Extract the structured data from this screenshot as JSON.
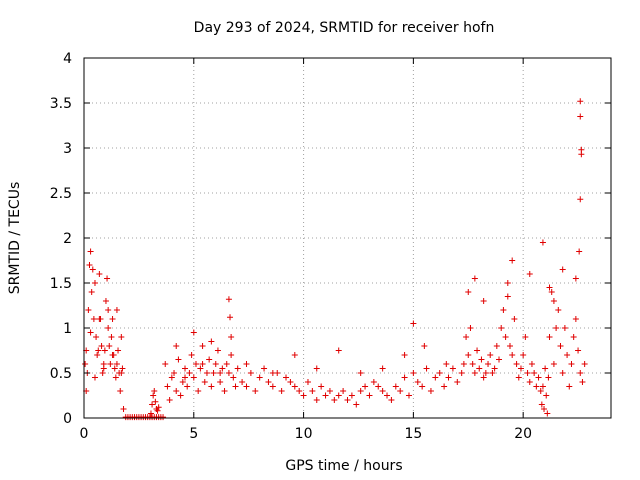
{
  "chart_data": {
    "type": "scatter",
    "title": "Day 293 of 2024, SRMTID for receiver hofn",
    "xlabel": "GPS time / hours",
    "ylabel": "SRMTID / TECUs",
    "xlim": [
      0,
      24
    ],
    "ylim": [
      0,
      4
    ],
    "xticks": [
      0,
      5,
      10,
      15,
      20
    ],
    "xtick_labels": [
      "0",
      "5",
      "10",
      "15",
      "20"
    ],
    "yticks": [
      0,
      0.5,
      1,
      1.5,
      2,
      2.5,
      3,
      3.5,
      4
    ],
    "ytick_labels": [
      "0",
      "0.5",
      "1",
      "1.5",
      "2",
      "2.5",
      "3",
      "3.5",
      "4"
    ],
    "grid": true,
    "marker": "plus",
    "color": "#e00000",
    "series": [
      {
        "name": "SRMTID",
        "x": [
          0.05,
          0.1,
          0.15,
          0.2,
          0.25,
          0.3,
          0.35,
          0.4,
          0.45,
          0.5,
          0.55,
          0.6,
          0.65,
          0.7,
          0.75,
          0.8,
          0.85,
          0.9,
          0.95,
          1.0,
          1.05,
          1.1,
          1.15,
          1.2,
          1.25,
          1.3,
          1.35,
          1.4,
          1.45,
          1.5,
          1.55,
          1.6,
          1.65,
          1.7,
          1.75,
          1.8,
          1.9,
          2.0,
          2.1,
          2.2,
          2.3,
          2.4,
          2.5,
          2.6,
          2.7,
          2.8,
          2.9,
          3.0,
          3.1,
          3.2,
          3.3,
          3.4,
          3.5,
          3.6,
          3.05,
          3.1,
          3.15,
          3.2,
          3.25,
          3.3,
          3.35,
          3.4,
          3.7,
          3.8,
          3.9,
          4.0,
          4.1,
          4.2,
          4.3,
          4.4,
          4.5,
          4.6,
          4.7,
          4.8,
          4.9,
          5.0,
          5.1,
          5.2,
          5.3,
          5.4,
          5.5,
          5.6,
          5.7,
          5.8,
          5.9,
          6.0,
          6.1,
          6.2,
          6.3,
          6.4,
          6.5,
          6.6,
          6.7,
          6.8,
          6.9,
          7.0,
          7.2,
          7.4,
          7.6,
          7.8,
          8.0,
          8.2,
          8.4,
          8.6,
          8.8,
          9.0,
          9.2,
          9.4,
          9.6,
          9.8,
          10.0,
          10.2,
          10.4,
          10.6,
          10.8,
          11.0,
          11.2,
          11.4,
          11.6,
          11.8,
          12.0,
          12.2,
          12.4,
          12.6,
          12.8,
          13.0,
          13.2,
          13.4,
          13.6,
          13.8,
          14.0,
          14.2,
          14.4,
          14.6,
          14.8,
          15.0,
          15.2,
          15.4,
          15.6,
          15.8,
          16.0,
          16.2,
          16.4,
          16.6,
          16.8,
          17.0,
          17.2,
          17.3,
          17.4,
          17.5,
          17.6,
          17.7,
          17.8,
          17.9,
          18.0,
          18.1,
          18.2,
          18.3,
          18.4,
          18.5,
          18.6,
          18.7,
          18.8,
          18.9,
          19.0,
          19.1,
          19.2,
          19.3,
          19.4,
          19.5,
          19.6,
          19.7,
          19.8,
          19.9,
          20.0,
          20.1,
          20.2,
          20.3,
          20.4,
          20.5,
          20.6,
          20.7,
          20.8,
          20.85,
          20.9,
          20.95,
          21.0,
          21.05,
          21.1,
          21.15,
          21.2,
          21.3,
          21.4,
          21.5,
          21.6,
          21.7,
          21.8,
          21.9,
          22.0,
          22.1,
          22.2,
          22.3,
          22.4,
          22.5,
          22.6,
          22.7,
          22.8,
          0.1,
          0.3,
          0.5,
          0.7,
          0.9,
          1.1,
          1.3,
          1.5,
          1.7,
          4.2,
          4.6,
          5.0,
          5.4,
          5.8,
          6.2,
          6.6,
          6.65,
          6.7,
          7.4,
          8.6,
          9.6,
          10.6,
          11.6,
          12.6,
          13.6,
          14.6,
          15.0,
          15.5,
          16.5,
          17.5,
          17.8,
          18.2,
          19.3,
          19.5,
          20.3,
          20.9,
          21.2,
          21.4,
          21.8,
          22.4,
          22.6,
          22.6,
          22.65,
          22.65,
          22.6,
          22.55
        ],
        "y": [
          0.6,
          0.75,
          0.5,
          1.2,
          1.7,
          1.85,
          1.4,
          1.65,
          1.1,
          1.5,
          0.9,
          0.7,
          0.75,
          1.6,
          1.1,
          0.8,
          0.5,
          0.6,
          0.75,
          1.3,
          1.55,
          1.2,
          0.8,
          0.6,
          0.9,
          1.1,
          0.7,
          0.55,
          0.45,
          0.6,
          0.75,
          0.5,
          0.3,
          0.5,
          0.55,
          0.1,
          0.01,
          0.01,
          0.01,
          0.01,
          0.01,
          0.01,
          0.01,
          0.01,
          0.01,
          0.01,
          0.01,
          0.01,
          0.01,
          0.01,
          0.01,
          0.01,
          0.01,
          0.01,
          0.05,
          0.15,
          0.25,
          0.3,
          0.18,
          0.1,
          0.08,
          0.12,
          0.6,
          0.35,
          0.2,
          0.45,
          0.5,
          0.3,
          0.65,
          0.25,
          0.4,
          0.55,
          0.35,
          0.5,
          0.7,
          0.45,
          0.6,
          0.3,
          0.55,
          0.8,
          0.4,
          0.5,
          0.65,
          0.35,
          0.5,
          0.6,
          0.75,
          0.4,
          0.55,
          0.3,
          0.6,
          0.5,
          0.7,
          0.45,
          0.35,
          0.55,
          0.4,
          0.35,
          0.5,
          0.3,
          0.45,
          0.55,
          0.4,
          0.35,
          0.5,
          0.3,
          0.45,
          0.4,
          0.35,
          0.3,
          0.25,
          0.4,
          0.3,
          0.2,
          0.35,
          0.25,
          0.3,
          0.2,
          0.25,
          0.3,
          0.2,
          0.25,
          0.15,
          0.3,
          0.35,
          0.25,
          0.4,
          0.35,
          0.3,
          0.25,
          0.2,
          0.35,
          0.3,
          0.45,
          0.25,
          0.5,
          0.4,
          0.35,
          0.55,
          0.3,
          0.45,
          0.5,
          0.35,
          0.45,
          0.55,
          0.4,
          0.5,
          0.6,
          0.9,
          0.7,
          1.0,
          0.6,
          0.5,
          0.75,
          0.55,
          0.65,
          0.45,
          0.5,
          0.6,
          0.7,
          0.5,
          0.55,
          0.8,
          0.65,
          1.0,
          1.2,
          0.9,
          1.5,
          0.8,
          0.7,
          1.1,
          0.6,
          0.45,
          0.55,
          0.7,
          0.9,
          0.5,
          0.4,
          0.6,
          0.5,
          0.35,
          0.45,
          0.3,
          0.15,
          0.35,
          0.1,
          0.55,
          0.25,
          0.05,
          0.45,
          0.9,
          1.4,
          0.6,
          1.0,
          1.2,
          0.8,
          0.5,
          1.0,
          0.7,
          0.35,
          0.6,
          0.9,
          1.1,
          0.75,
          0.5,
          0.4,
          0.6,
          0.3,
          0.95,
          0.45,
          1.1,
          0.55,
          1.0,
          0.7,
          1.2,
          0.9,
          0.8,
          0.45,
          0.95,
          0.6,
          0.85,
          0.5,
          1.32,
          1.12,
          0.9,
          0.6,
          0.5,
          0.7,
          0.55,
          0.75,
          0.5,
          0.55,
          0.7,
          1.05,
          0.8,
          0.6,
          1.4,
          1.55,
          1.3,
          1.35,
          1.75,
          1.6,
          1.95,
          1.45,
          1.3,
          1.65,
          1.55,
          3.52,
          3.35,
          2.98,
          2.93,
          2.43,
          1.85
        ]
      }
    ]
  }
}
